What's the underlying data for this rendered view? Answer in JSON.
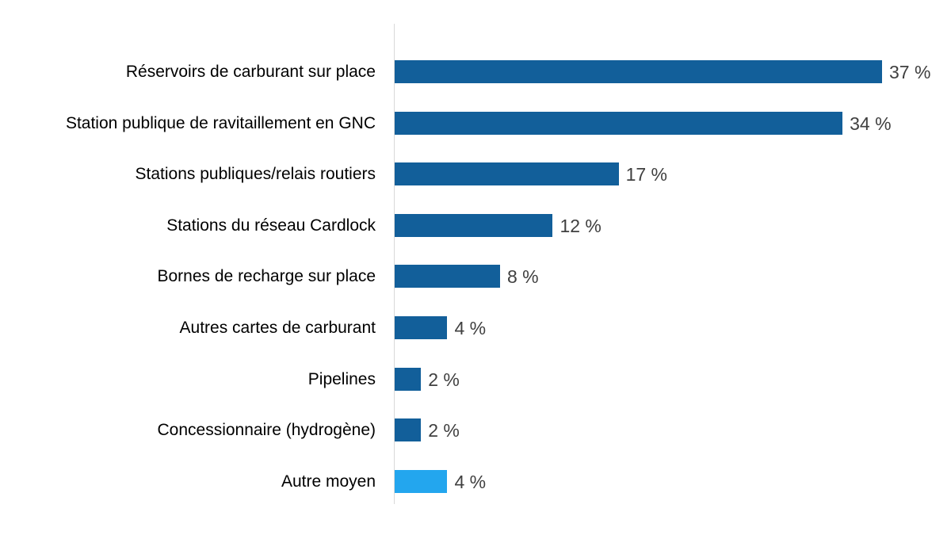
{
  "chart_data": {
    "type": "bar",
    "orientation": "horizontal",
    "title": "",
    "xlabel": "",
    "ylabel": "",
    "xlim": [
      0,
      37
    ],
    "grid": false,
    "legend": null,
    "categories": [
      "Réservoirs de carburant sur place",
      "Station publique de ravitaillement en GNC",
      "Stations publiques/relais routiers",
      "Stations du réseau Cardlock",
      "Bornes de recharge sur place",
      "Autres cartes de carburant",
      "Pipelines",
      "Concessionnaire (hydrogène)",
      "Autre moyen"
    ],
    "values": [
      37,
      34,
      17,
      12,
      8,
      4,
      2,
      2,
      4
    ],
    "value_labels": [
      "37 %",
      "34 %",
      "17 %",
      "12 %",
      "8 %",
      "4 %",
      "2 %",
      "2 %",
      "4 %"
    ],
    "colors": [
      "#125f9a",
      "#125f9a",
      "#125f9a",
      "#125f9a",
      "#125f9a",
      "#125f9a",
      "#125f9a",
      "#125f9a",
      "#23a6ee"
    ],
    "unit": "%"
  }
}
